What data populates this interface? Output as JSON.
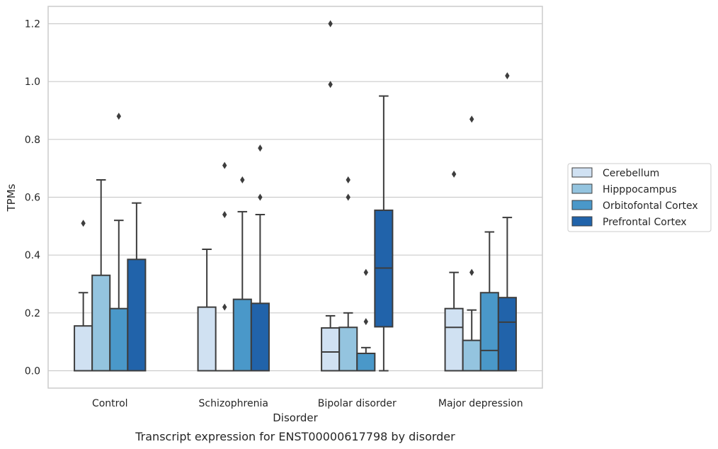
{
  "chart_data": {
    "type": "boxplot",
    "caption": "Transcript expression for ENST00000617798 by disorder",
    "xlabel": "Disorder",
    "ylabel": "TPMs",
    "ylim": [
      -0.06,
      1.26
    ],
    "yticks": [
      "0.0",
      "0.2",
      "0.4",
      "0.6",
      "0.8",
      "1.0",
      "1.2"
    ],
    "grid": "horizontal",
    "legend_position": "right",
    "categories": [
      "Control",
      "Schizophrenia",
      "Bipolar disorder",
      "Major depression"
    ],
    "series": [
      {
        "name": "Cerebellum",
        "color": "#d0e1f2",
        "boxes": [
          {
            "low": 0,
            "q1": 0,
            "median": 0,
            "q3": 0.155,
            "high": 0.27,
            "outliers": [
              0.51
            ]
          },
          {
            "low": 0,
            "q1": 0,
            "median": 0,
            "q3": 0.22,
            "high": 0.42,
            "outliers": []
          },
          {
            "low": 0,
            "q1": 0,
            "median": 0.065,
            "q3": 0.148,
            "high": 0.19,
            "outliers": [
              0.99,
              1.2
            ]
          },
          {
            "low": 0,
            "q1": 0,
            "median": 0.15,
            "q3": 0.215,
            "high": 0.34,
            "outliers": [
              0.68
            ]
          }
        ]
      },
      {
        "name": "Hipppocampus",
        "color": "#94c4df",
        "boxes": [
          {
            "low": 0,
            "q1": 0,
            "median": 0,
            "q3": 0.33,
            "high": 0.66,
            "outliers": []
          },
          {
            "low": 0,
            "q1": 0,
            "median": 0,
            "q3": 0,
            "high": 0,
            "outliers": [
              0.22,
              0.54,
              0.71
            ]
          },
          {
            "low": 0,
            "q1": 0,
            "median": 0,
            "q3": 0.15,
            "high": 0.2,
            "outliers": [
              0.6,
              0.66
            ]
          },
          {
            "low": 0,
            "q1": 0,
            "median": 0,
            "q3": 0.105,
            "high": 0.21,
            "outliers": [
              0.34,
              0.87
            ]
          }
        ]
      },
      {
        "name": "Orbitofontal Cortex",
        "color": "#4a98c9",
        "boxes": [
          {
            "low": 0,
            "q1": 0,
            "median": 0,
            "q3": 0.215,
            "high": 0.52,
            "outliers": [
              0.88
            ]
          },
          {
            "low": 0,
            "q1": 0,
            "median": 0,
            "q3": 0.247,
            "high": 0.55,
            "outliers": [
              0.66
            ]
          },
          {
            "low": 0,
            "q1": 0,
            "median": 0,
            "q3": 0.06,
            "high": 0.08,
            "outliers": [
              0.17,
              0.34
            ]
          },
          {
            "low": 0,
            "q1": 0,
            "median": 0.07,
            "q3": 0.27,
            "high": 0.48,
            "outliers": []
          }
        ]
      },
      {
        "name": "Prefrontal Cortex",
        "color": "#2163aa",
        "boxes": [
          {
            "low": 0,
            "q1": 0,
            "median": 0,
            "q3": 0.385,
            "high": 0.58,
            "outliers": []
          },
          {
            "low": 0,
            "q1": 0,
            "median": 0,
            "q3": 0.233,
            "high": 0.54,
            "outliers": [
              0.6,
              0.77
            ]
          },
          {
            "low": 0,
            "q1": 0.152,
            "median": 0.355,
            "q3": 0.555,
            "high": 0.95,
            "outliers": []
          },
          {
            "low": 0,
            "q1": 0,
            "median": 0.168,
            "q3": 0.253,
            "high": 0.53,
            "outliers": [
              1.02
            ]
          }
        ]
      }
    ]
  }
}
